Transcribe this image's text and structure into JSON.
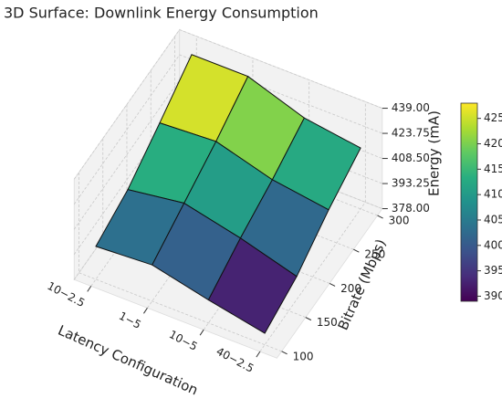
{
  "chart_data": {
    "type": "surface",
    "title": "3D Surface: Downlink Energy Consumption",
    "x_label": "Latency Configuration",
    "y_label": "Bitrate (Mbps)",
    "z_label": "Energy (mA)",
    "categories": [
      "10−2.5",
      "1−5",
      "10−5",
      "40−2.5"
    ],
    "y": [
      100,
      166.7,
      233.3,
      300
    ],
    "z": [
      [
        398,
        405,
        418,
        432
      ],
      [
        400,
        410,
        420,
        432
      ],
      [
        392,
        402,
        410,
        420
      ],
      [
        385,
        392,
        405,
        415
      ]
    ],
    "ylim": [
      90,
      310
    ],
    "yticks": [
      100,
      150,
      200,
      250,
      300
    ],
    "zlim": [
      378,
      439
    ],
    "zticks": [
      {
        "value": 378,
        "label": "378.00"
      },
      {
        "value": 393.25,
        "label": "393.25"
      },
      {
        "value": 408.5,
        "label": "408.50"
      },
      {
        "value": 423.75,
        "label": "423.75"
      },
      {
        "value": 439,
        "label": "439.00"
      }
    ],
    "colormap": "viridis",
    "clim": [
      389,
      428
    ],
    "colorbar_ticks": [
      390,
      395,
      400,
      405,
      410,
      415,
      420,
      425
    ]
  }
}
